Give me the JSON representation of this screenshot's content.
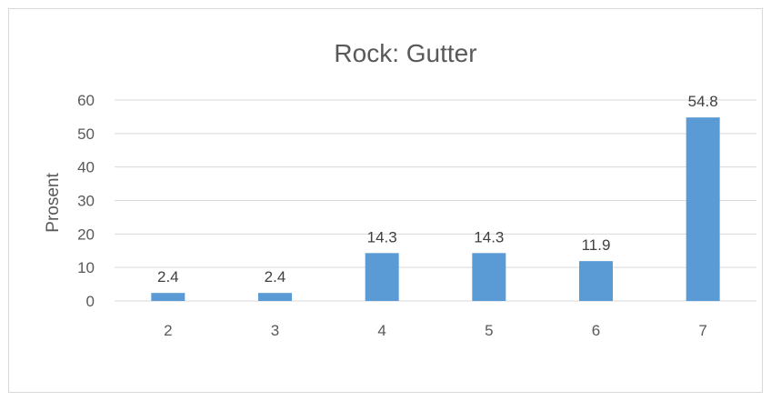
{
  "chart_data": {
    "type": "bar",
    "title": "Rock: Gutter",
    "xlabel": "",
    "ylabel": "Prosent",
    "categories": [
      "2",
      "3",
      "4",
      "5",
      "6",
      "7"
    ],
    "values": [
      2.4,
      2.4,
      14.3,
      14.3,
      11.9,
      54.8
    ],
    "data_labels": [
      "2.4",
      "2.4",
      "14.3",
      "14.3",
      "11.9",
      "54.8"
    ],
    "yticks": [
      0,
      10,
      20,
      30,
      40,
      50,
      60
    ],
    "ylim": [
      0,
      60
    ],
    "grid": true,
    "legend": "none",
    "bar_color": "#5b9bd5"
  }
}
